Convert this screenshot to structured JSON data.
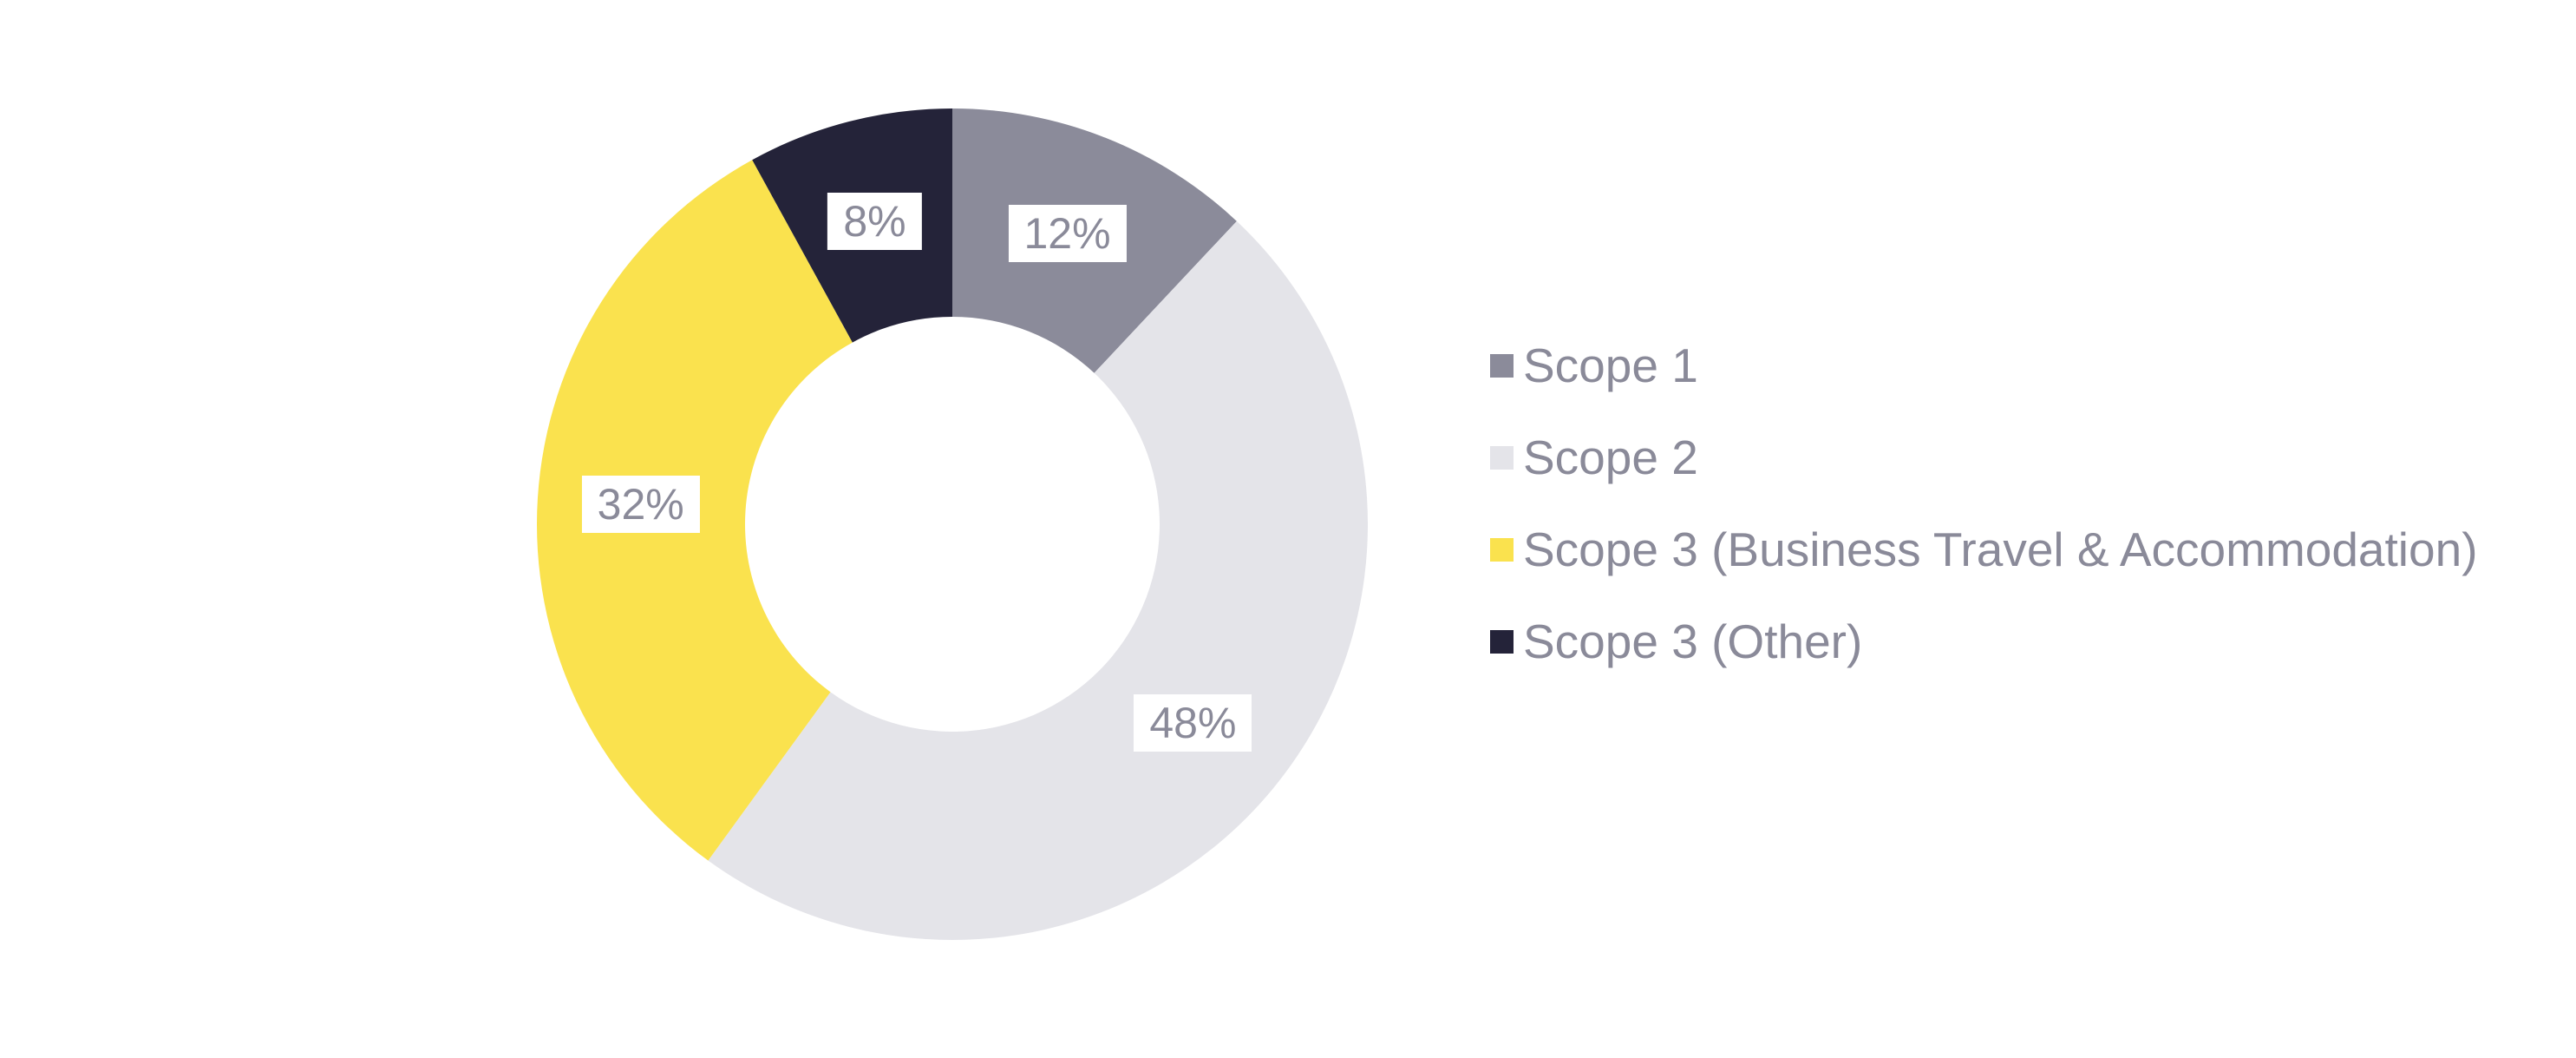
{
  "page": {
    "background_color": "#ffffff"
  },
  "chart_data": {
    "type": "pie",
    "subtype": "donut",
    "title": "",
    "legend_position": "right",
    "start_angle_deg": 0,
    "clockwise": true,
    "series": [
      {
        "label": "Scope 1",
        "value": 12,
        "data_label": "12%",
        "color": "#8b8b9a"
      },
      {
        "label": "Scope 2",
        "value": 48,
        "data_label": "48%",
        "color": "#e4e4e9"
      },
      {
        "label": "Scope 3 (Business Travel & Accommodation)",
        "value": 32,
        "data_label": "32%",
        "color": "#fae24e"
      },
      {
        "label": "Scope 3 (Other)",
        "value": 8,
        "data_label": "8%",
        "color": "#242339"
      }
    ],
    "data_label_style": {
      "background": "#ffffff",
      "text_color": "#8a8a99"
    },
    "legend_text_color": "#8a8a99",
    "geometry": {
      "center_x": 1098,
      "center_y": 604,
      "outer_radius": 479,
      "inner_radius": 239,
      "label_radius": 360,
      "hole_color": "#ffffff"
    }
  }
}
